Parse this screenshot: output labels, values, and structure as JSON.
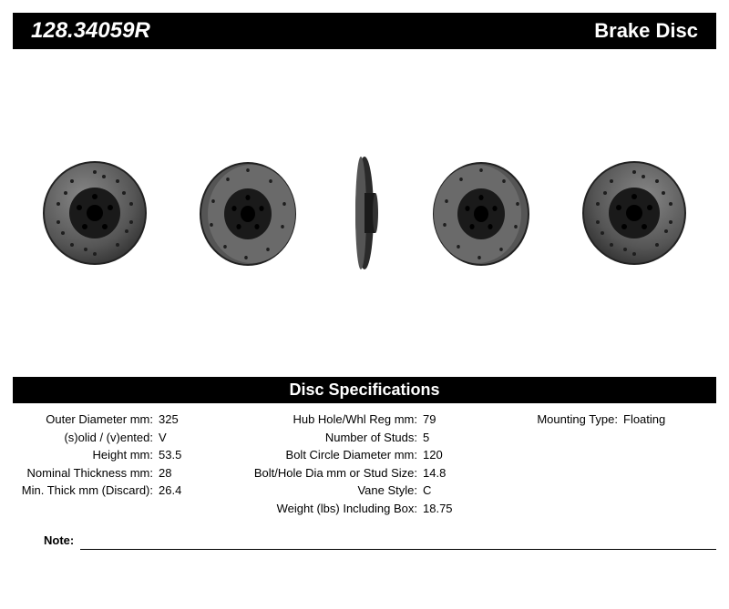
{
  "header": {
    "part_number": "128.34059R",
    "product_name": "Brake Disc"
  },
  "specs_title": "Disc Specifications",
  "col1": [
    {
      "label": "Outer Diameter mm:",
      "value": "325"
    },
    {
      "label": "(s)olid / (v)ented:",
      "value": "V"
    },
    {
      "label": "Height mm:",
      "value": "53.5"
    },
    {
      "label": "Nominal Thickness mm:",
      "value": "28"
    },
    {
      "label": "Min. Thick mm (Discard):",
      "value": "26.4"
    }
  ],
  "col2": [
    {
      "label": "Hub Hole/Whl Reg mm:",
      "value": "79"
    },
    {
      "label": "Number of Studs:",
      "value": "5"
    },
    {
      "label": "Bolt Circle Diameter mm:",
      "value": "120"
    },
    {
      "label": "Bolt/Hole Dia mm or Stud Size:",
      "value": "14.8"
    },
    {
      "label": "Vane Style:",
      "value": "C"
    },
    {
      "label": "Weight (lbs) Including Box:",
      "value": "18.75"
    }
  ],
  "col3": [
    {
      "label": "Mounting Type:",
      "value": "Floating"
    }
  ],
  "note_label": "Note:",
  "colors": {
    "bar_bg": "#000000",
    "bar_fg": "#ffffff",
    "rotor_face": "#6a6a6a",
    "rotor_edge": "#2a2a2a",
    "rotor_ctr": "#1a1a1a",
    "hole": "#1e1e1e"
  }
}
